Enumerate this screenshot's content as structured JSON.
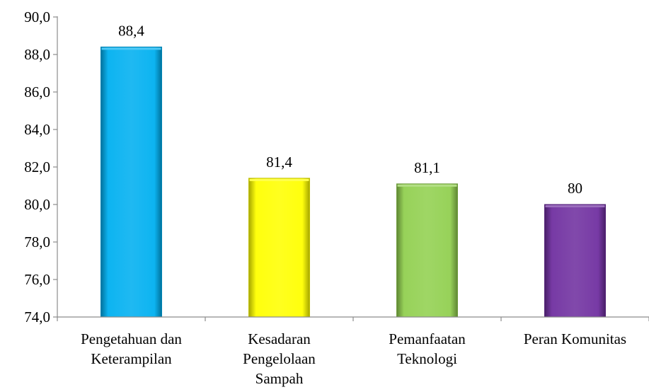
{
  "chart_data": {
    "type": "bar",
    "categories": [
      [
        "Pengetahuan dan",
        "Keterampilan"
      ],
      [
        "Kesadaran",
        "Pengelolaan",
        "Sampah"
      ],
      [
        "Pemanfaatan",
        "Teknologi"
      ],
      [
        "Peran Komunitas"
      ]
    ],
    "values": [
      88.4,
      81.4,
      81.1,
      80
    ],
    "data_labels": [
      "88,4",
      "81,4",
      "81,1",
      "80"
    ],
    "colors": [
      "#00b0f0",
      "#ffff00",
      "#92d050",
      "#7030a0"
    ],
    "ylim": [
      74,
      90
    ],
    "yticks": [
      {
        "value": 74,
        "label": "74,0"
      },
      {
        "value": 76,
        "label": "76,0"
      },
      {
        "value": 78,
        "label": "78,0"
      },
      {
        "value": 80,
        "label": "80,0"
      },
      {
        "value": 82,
        "label": "82,0"
      },
      {
        "value": 84,
        "label": "84,0"
      },
      {
        "value": 86,
        "label": "86,0"
      },
      {
        "value": 88,
        "label": "88,0"
      },
      {
        "value": 90,
        "label": "90,0"
      }
    ],
    "grid": false,
    "legend": "none"
  }
}
